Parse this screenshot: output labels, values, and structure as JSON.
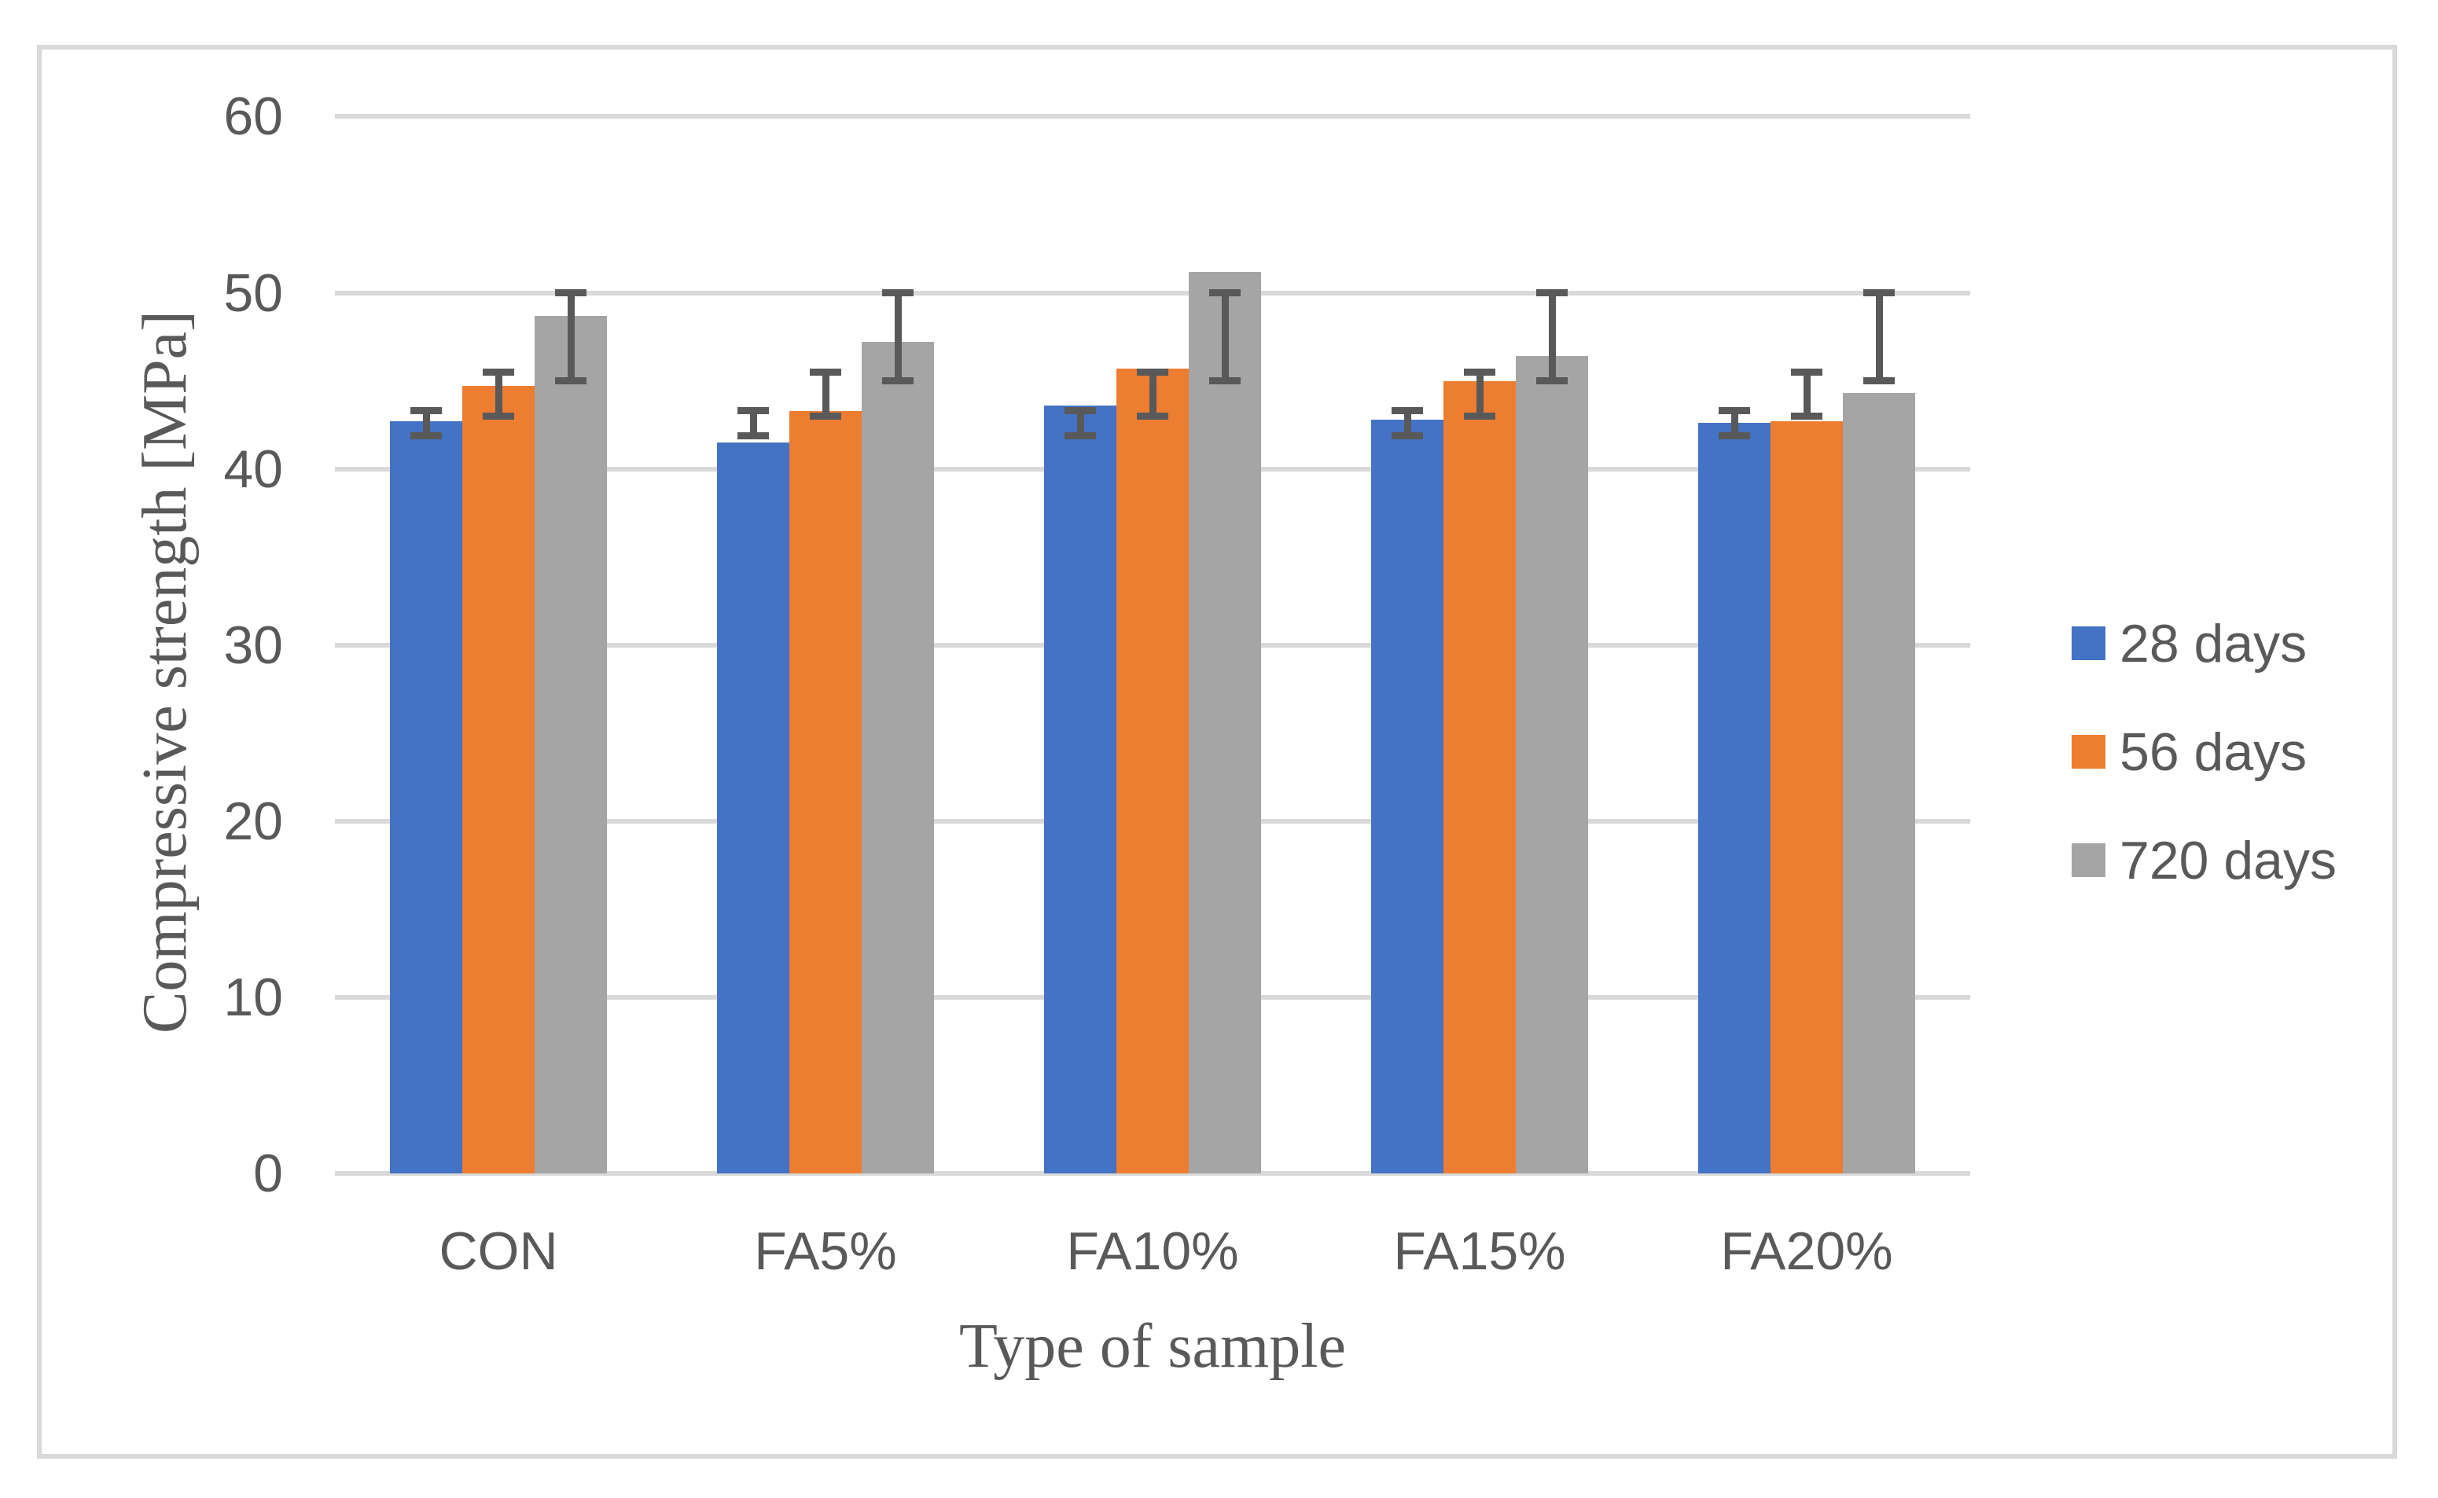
{
  "chart_data": {
    "type": "bar",
    "title": "",
    "xlabel": "Type of sample",
    "ylabel": "Compressive strength [MPa]",
    "categories": [
      "CON",
      "FA5%",
      "FA10%",
      "FA15%",
      "FA20%"
    ],
    "series": [
      {
        "name": "28 days",
        "color": "#4472C4",
        "values": [
          42.7,
          41.5,
          43.6,
          42.8,
          42.6
        ],
        "error_bar": {
          "low": 41.9,
          "high": 43.3
        }
      },
      {
        "name": "56 days",
        "color": "#ED7D31",
        "values": [
          44.7,
          43.3,
          45.7,
          45.0,
          42.7
        ],
        "error_bar": {
          "low": 43.0,
          "high": 45.5
        }
      },
      {
        "name": "720 days",
        "color": "#A5A5A5",
        "values": [
          48.7,
          47.2,
          51.2,
          46.4,
          44.3
        ],
        "error_bar": {
          "low": 45.0,
          "high": 50.0
        }
      }
    ],
    "ylim": [
      0,
      60
    ],
    "ytick_interval": 10,
    "yticks": [
      0,
      10,
      20,
      30,
      40,
      50,
      60
    ],
    "grid": "horizontal-only",
    "legend_position": "right",
    "colors": {
      "gridline": "#D9D9D9",
      "frame_border": "#D9D9D9",
      "error_bar": "#595959",
      "text": "#595959",
      "background": "#FFFFFF"
    }
  }
}
